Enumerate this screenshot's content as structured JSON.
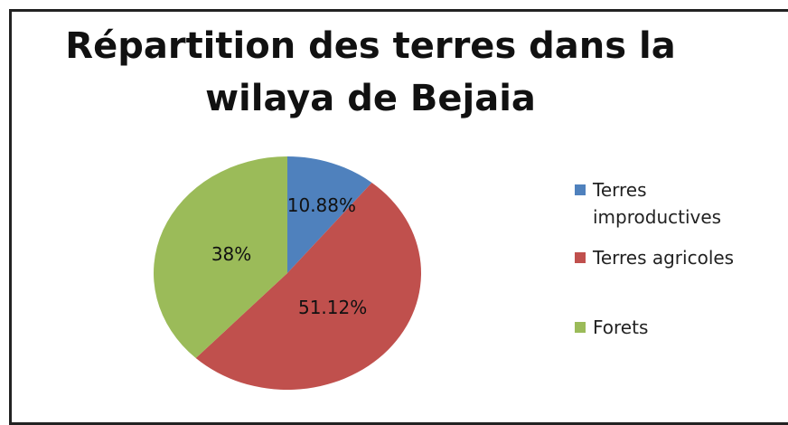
{
  "chart_data": {
    "type": "pie",
    "title": "Répartition des terres dans la wilaya de Bejaia",
    "categories": [
      "Terres improductives",
      "Terres agricoles",
      "Forets"
    ],
    "values": [
      10.88,
      51.12,
      38
    ],
    "value_labels": [
      "10.88%",
      "51.12%",
      "38%"
    ],
    "colors": [
      "#4f81bd",
      "#c0504d",
      "#9bbb59"
    ],
    "legend": "right"
  }
}
